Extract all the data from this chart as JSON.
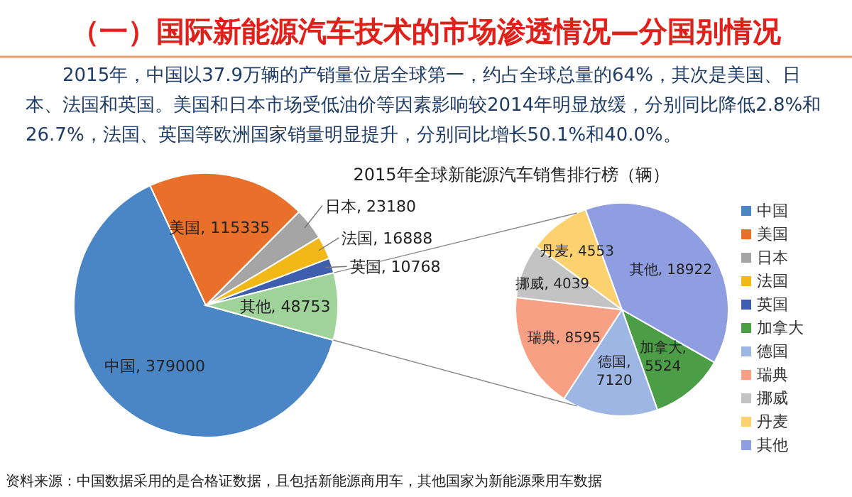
{
  "chart_data": [
    {
      "type": "pie",
      "title": "2015年全球新能源汽车销售排行榜（辆）",
      "annotations": [
        "（一）国际新能源汽车技术的市场渗透情况—分国别情况",
        "2015年，中国以37.9万辆的产销量位居全球第一，约占全球总量的64%，其次是美国、日本、法国和英国。美国和日本市场受低油价等因素影响较2014年明显放缓，分别同比降低2.8%和26.7%，法国、英国等欧洲国家销量明显提升，分别同比增长50.1%和40.0%。",
        "资料来源：中国数据采用的是合格证数据，且包括新能源商用车，其他国家为新能源乘用车数据"
      ],
      "categories": [
        "中国",
        "美国",
        "日本",
        "法国",
        "英国",
        null
      ],
      "values": [
        379000,
        115335,
        23180,
        16888,
        10768,
        48753
      ],
      "colors": [
        "#4a86c5",
        "#e8702a",
        "#a5a5a5",
        "#f2b818",
        "#3f5fae",
        "#9fd39a"
      ],
      "value_labels": [
        "中国, 379000",
        "美国, 115335",
        "日本, 23180",
        "法国, 16888",
        "英国, 10768",
        "其他, 48753"
      ],
      "legend": "right"
    },
    {
      "type": "pie",
      "categories": [
        "加拿大",
        "德国",
        "瑞典",
        "挪威",
        "丹麦",
        "其他"
      ],
      "values": [
        5524,
        7120,
        8595,
        4039,
        4553,
        18922
      ],
      "colors": [
        "#4c9e46",
        "#9db6e3",
        "#f7a084",
        "#c3c3c3",
        "#fcd270",
        "#8f9ee0"
      ],
      "value_labels": [
        "加拿大, 5524",
        "德国, 7120",
        "瑞典, 8595",
        "挪威, 4039",
        "丹麦, 4553",
        "其他, 18922"
      ],
      "legend": "right"
    }
  ]
}
